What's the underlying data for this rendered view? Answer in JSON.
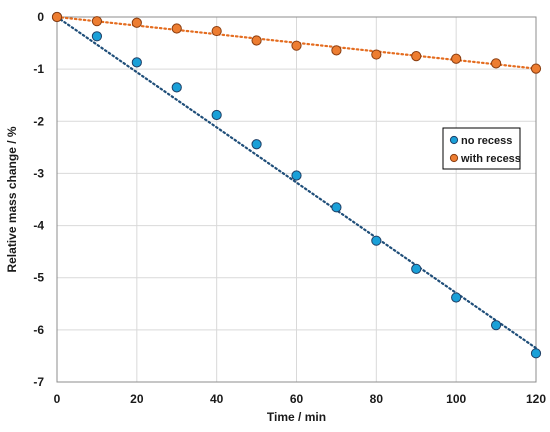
{
  "chart_data": {
    "type": "scatter",
    "xlabel": "Time / min",
    "ylabel": "Relative mass change / %",
    "xlim": [
      0,
      120
    ],
    "ylim": [
      -7,
      0
    ],
    "xticks": [
      0,
      20,
      40,
      60,
      80,
      100,
      120
    ],
    "yticks": [
      0,
      -1,
      -2,
      -3,
      -4,
      -5,
      -6,
      -7
    ],
    "grid": true,
    "legend_position": "right",
    "series": [
      {
        "name": "no recess",
        "color": "#1aa0d8",
        "edge_color": "#1f3f66",
        "trendline": {
          "style": "dotted",
          "color": "#1f4e79",
          "x": [
            0,
            120
          ],
          "y": [
            0,
            -6.35
          ]
        },
        "x": [
          0,
          10,
          20,
          30,
          40,
          50,
          60,
          70,
          80,
          90,
          100,
          110,
          120
        ],
        "y": [
          0,
          -0.37,
          -0.87,
          -1.35,
          -1.88,
          -2.44,
          -3.04,
          -3.65,
          -4.29,
          -4.83,
          -5.38,
          -5.91,
          -6.45
        ]
      },
      {
        "name": "with recess",
        "color": "#ed7d31",
        "edge_color": "#8a3d10",
        "trendline": {
          "style": "dotted",
          "color": "#e46c1f",
          "x": [
            0,
            120
          ],
          "y": [
            0,
            -0.99
          ]
        },
        "x": [
          0,
          10,
          20,
          30,
          40,
          50,
          60,
          70,
          80,
          90,
          100,
          110,
          120
        ],
        "y": [
          0,
          -0.08,
          -0.11,
          -0.22,
          -0.27,
          -0.45,
          -0.55,
          -0.64,
          -0.72,
          -0.75,
          -0.8,
          -0.89,
          -0.99
        ]
      }
    ]
  }
}
